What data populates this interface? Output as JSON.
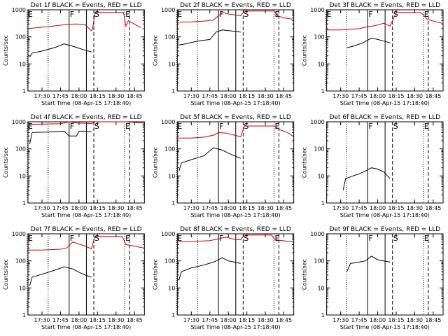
{
  "chart_data": [
    {
      "type": "line",
      "title": "Det 1f BLACK = Events, RED = LLD",
      "xlabel": "Start Time (08-Apr-15 17:18:40)",
      "ylabel": "Counts/sec",
      "yscale": "log",
      "ylim": [
        1,
        1000
      ],
      "xlim": [
        "17:18:40",
        "18:53:00"
      ],
      "xticks": [
        "17:30",
        "17:45",
        "18:00",
        "18:15",
        "18:30",
        "18:45"
      ],
      "yticks": [
        "1",
        "10",
        "100",
        "1000"
      ],
      "markers": [
        {
          "label": "E",
          "time": "17:18",
          "style": "dotted"
        },
        {
          "label": "",
          "time": "17:35",
          "style": "dotted"
        },
        {
          "label": "F",
          "time": "17:52",
          "style": "solid"
        },
        {
          "label": "",
          "time": "18:06",
          "style": "solid"
        },
        {
          "label": "S",
          "time": "18:12",
          "style": "dashed"
        },
        {
          "label": "E",
          "time": "18:37",
          "style": "dotted"
        },
        {
          "label": "",
          "time": "18:41",
          "style": "dashed"
        }
      ],
      "series": [
        {
          "color": "#cc0000",
          "x": [
            "17:18",
            "17:25",
            "17:35",
            "17:45",
            "17:50",
            "17:58",
            "18:05",
            "18:10",
            "18:11",
            "18:13",
            "18:22",
            "18:30",
            "18:36",
            "18:38",
            "18:40",
            "18:42",
            "18:50"
          ],
          "values": [
            200,
            215,
            240,
            270,
            290,
            300,
            280,
            170,
            200,
            800,
            800,
            800,
            800,
            250,
            400,
            350,
            220
          ]
        },
        {
          "color": "#000000",
          "x": [
            "17:20",
            "17:22",
            "17:30",
            "17:40",
            "17:48",
            "17:55",
            "18:00",
            "18:05",
            "18:10"
          ],
          "values": [
            18,
            25,
            30,
            40,
            55,
            45,
            38,
            32,
            28
          ]
        }
      ]
    },
    {
      "type": "line",
      "title": "Det 2f BLACK = Events, RED = LLD",
      "xlabel": "Start Time (08-Apr-15 17:18:40)",
      "ylabel": "Counts/sec",
      "yscale": "log",
      "ylim": [
        1,
        1000
      ],
      "xlim": [
        "17:18:40",
        "18:53:00"
      ],
      "xticks": [
        "17:30",
        "17:45",
        "18:00",
        "18:15",
        "18:30",
        "18:45"
      ],
      "yticks": [
        "1",
        "10",
        "100",
        "1000"
      ],
      "markers": [
        {
          "label": "E",
          "time": "17:18",
          "style": "dotted"
        },
        {
          "label": "",
          "time": "17:35",
          "style": "dotted"
        },
        {
          "label": "F",
          "time": "17:52",
          "style": "solid"
        },
        {
          "label": "",
          "time": "18:06",
          "style": "solid"
        },
        {
          "label": "S",
          "time": "18:12",
          "style": "dashed"
        },
        {
          "label": "E",
          "time": "18:37",
          "style": "dotted"
        },
        {
          "label": "",
          "time": "18:41",
          "style": "dashed"
        }
      ],
      "series": [
        {
          "color": "#cc0000",
          "x": [
            "17:18",
            "17:30",
            "17:40",
            "17:48",
            "17:55",
            "18:00",
            "18:05",
            "18:10",
            "18:13",
            "18:20",
            "18:30",
            "18:37",
            "18:40",
            "18:45",
            "18:52"
          ],
          "values": [
            350,
            360,
            380,
            420,
            800,
            700,
            650,
            600,
            900,
            900,
            900,
            900,
            600,
            500,
            450
          ]
        },
        {
          "color": "#000000",
          "x": [
            "17:20",
            "17:25",
            "17:35",
            "17:45",
            "17:50",
            "17:55",
            "18:00",
            "18:05",
            "18:10"
          ],
          "values": [
            50,
            55,
            70,
            80,
            150,
            180,
            170,
            160,
            150
          ]
        }
      ]
    },
    {
      "type": "line",
      "title": "Det 3f BLACK = Events, RED = LLD",
      "xlabel": "Start Time (08-Apr-15 17:18:40)",
      "ylabel": "Counts/sec",
      "yscale": "log",
      "ylim": [
        1,
        1000
      ],
      "xlim": [
        "17:18:40",
        "18:53:00"
      ],
      "xticks": [
        "17:30",
        "17:45",
        "18:00",
        "18:15",
        "18:30",
        "18:45"
      ],
      "yticks": [
        "1",
        "10",
        "100",
        "1000"
      ],
      "markers": [
        {
          "label": "E",
          "time": "17:18",
          "style": "dotted"
        },
        {
          "label": "",
          "time": "17:35",
          "style": "dotted"
        },
        {
          "label": "F",
          "time": "17:52",
          "style": "solid"
        },
        {
          "label": "",
          "time": "18:06",
          "style": "solid"
        },
        {
          "label": "S",
          "time": "18:12",
          "style": "dashed"
        },
        {
          "label": "E",
          "time": "18:37",
          "style": "dotted"
        },
        {
          "label": "",
          "time": "18:41",
          "style": "dashed"
        }
      ],
      "series": [
        {
          "color": "#cc0000",
          "x": [
            "17:18",
            "17:30",
            "17:45",
            "17:52",
            "17:58",
            "18:05",
            "18:10",
            "18:15",
            "18:25",
            "18:35",
            "18:40",
            "18:45",
            "18:52"
          ],
          "values": [
            180,
            180,
            200,
            240,
            260,
            320,
            250,
            800,
            800,
            800,
            450,
            380,
            320
          ]
        },
        {
          "color": "#000000",
          "x": [
            "17:35",
            "17:40",
            "17:48",
            "17:55",
            "18:00",
            "18:05",
            "18:10"
          ],
          "values": [
            40,
            45,
            60,
            90,
            80,
            70,
            60
          ]
        }
      ]
    },
    {
      "type": "line",
      "title": "Det 4f BLACK = Events, RED = LLD",
      "xlabel": "Start Time (08-Apr-15 17:18:40)",
      "ylabel": "Counts/sec",
      "yscale": "log",
      "ylim": [
        1,
        1000
      ],
      "xlim": [
        "17:18:40",
        "18:53:00"
      ],
      "xticks": [
        "17:30",
        "17:45",
        "18:00",
        "18:15",
        "18:30",
        "18:45"
      ],
      "yticks": [
        "1",
        "10",
        "100",
        "1000"
      ],
      "markers": [
        {
          "label": "E",
          "time": "17:18",
          "style": "dotted"
        },
        {
          "label": "",
          "time": "17:35",
          "style": "dotted"
        },
        {
          "label": "F",
          "time": "17:52",
          "style": "solid"
        },
        {
          "label": "",
          "time": "18:06",
          "style": "solid"
        },
        {
          "label": "S",
          "time": "18:12",
          "style": "dashed"
        },
        {
          "label": "E",
          "time": "18:37",
          "style": "dotted"
        },
        {
          "label": "",
          "time": "18:41",
          "style": "dashed"
        }
      ],
      "series": [
        {
          "color": "#cc0000",
          "x": [
            "17:18",
            "17:30",
            "17:45",
            "17:52",
            "17:58",
            "18:05",
            "18:10",
            "18:13",
            "18:22",
            "18:35",
            "18:38",
            "18:45",
            "18:52"
          ],
          "values": [
            800,
            820,
            850,
            1000,
            900,
            880,
            850,
            1000,
            1000,
            1000,
            1000,
            950,
            900
          ]
        },
        {
          "color": "#000000",
          "x": [
            "17:20",
            "17:22",
            "17:35",
            "17:48",
            "17:52",
            "17:58",
            "18:00",
            "18:05",
            "18:10"
          ],
          "values": [
            150,
            400,
            420,
            450,
            300,
            300,
            450,
            450,
            430
          ]
        }
      ]
    },
    {
      "type": "line",
      "title": "Det 5f BLACK = Events, RED = LLD",
      "xlabel": "Start Time (08-Apr-15 17:18:40)",
      "ylabel": "Counts/sec",
      "yscale": "log",
      "ylim": [
        1,
        1000
      ],
      "xlim": [
        "17:18:40",
        "18:53:00"
      ],
      "xticks": [
        "17:30",
        "17:45",
        "18:00",
        "18:15",
        "18:30",
        "18:45"
      ],
      "yticks": [
        "1",
        "10",
        "100",
        "1000"
      ],
      "markers": [
        {
          "label": "E",
          "time": "17:18",
          "style": "dotted"
        },
        {
          "label": "",
          "time": "17:35",
          "style": "dotted"
        },
        {
          "label": "F",
          "time": "17:52",
          "style": "solid"
        },
        {
          "label": "",
          "time": "18:06",
          "style": "solid"
        },
        {
          "label": "S",
          "time": "18:12",
          "style": "dashed"
        },
        {
          "label": "E",
          "time": "18:37",
          "style": "dotted"
        },
        {
          "label": "",
          "time": "18:41",
          "style": "dashed"
        }
      ],
      "series": [
        {
          "color": "#cc0000",
          "x": [
            "17:18",
            "17:30",
            "17:40",
            "17:48",
            "17:52",
            "17:58",
            "18:05",
            "18:10",
            "18:13",
            "18:22",
            "18:32",
            "18:37",
            "18:42",
            "18:48",
            "18:52"
          ],
          "values": [
            250,
            250,
            270,
            320,
            400,
            380,
            320,
            280,
            700,
            700,
            700,
            700,
            500,
            400,
            300
          ]
        },
        {
          "color": "#000000",
          "x": [
            "17:20",
            "17:22",
            "17:30",
            "17:40",
            "17:48",
            "17:55",
            "18:00",
            "18:05",
            "18:10"
          ],
          "values": [
            15,
            30,
            40,
            55,
            110,
            90,
            70,
            55,
            45
          ]
        }
      ]
    },
    {
      "type": "line",
      "title": "Det 6f BLACK = Events, RED = LLD",
      "xlabel": "Start Time (08-Apr-15 17:18:40)",
      "ylabel": "Counts/sec",
      "yscale": "log",
      "ylim": [
        1,
        1000
      ],
      "xlim": [
        "17:18:40",
        "18:53:00"
      ],
      "xticks": [
        "17:30",
        "17:45",
        "18:00",
        "18:15",
        "18:30",
        "18:45"
      ],
      "yticks": [
        "1",
        "10",
        "100",
        "1000"
      ],
      "markers": [
        {
          "label": "",
          "time": "17:35",
          "style": "dotted"
        },
        {
          "label": "F",
          "time": "17:52",
          "style": "solid"
        },
        {
          "label": "",
          "time": "18:06",
          "style": "solid"
        },
        {
          "label": "S",
          "time": "18:12",
          "style": "dashed"
        },
        {
          "label": "E",
          "time": "18:37",
          "style": "dotted"
        },
        {
          "label": "",
          "time": "18:41",
          "style": "dashed"
        }
      ],
      "series": [
        {
          "color": "#000000",
          "x": [
            "17:32",
            "17:34",
            "17:40",
            "17:45",
            "17:50",
            "17:55",
            "18:00",
            "18:05",
            "18:08",
            "18:10"
          ],
          "values": [
            3,
            8,
            10,
            12,
            15,
            20,
            18,
            14,
            10,
            8
          ]
        }
      ]
    },
    {
      "type": "line",
      "title": "Det 7f BLACK = Events, RED = LLD",
      "xlabel": "Start Time (08-Apr-15 17:18:40)",
      "ylabel": "Counts/sec",
      "yscale": "log",
      "ylim": [
        1,
        1000
      ],
      "xlim": [
        "17:18:40",
        "18:53:00"
      ],
      "xticks": [
        "17:30",
        "17:45",
        "18:00",
        "18:15",
        "18:30",
        "18:45"
      ],
      "yticks": [
        "1",
        "10",
        "100",
        "1000"
      ],
      "markers": [
        {
          "label": "E",
          "time": "17:18",
          "style": "dotted"
        },
        {
          "label": "",
          "time": "17:35",
          "style": "dotted"
        },
        {
          "label": "F",
          "time": "17:52",
          "style": "solid"
        },
        {
          "label": "",
          "time": "18:06",
          "style": "solid"
        },
        {
          "label": "S",
          "time": "18:12",
          "style": "dashed"
        },
        {
          "label": "E",
          "time": "18:37",
          "style": "dotted"
        },
        {
          "label": "",
          "time": "18:41",
          "style": "dashed"
        }
      ],
      "series": [
        {
          "color": "#cc0000",
          "x": [
            "17:18",
            "17:30",
            "17:45",
            "17:50",
            "17:55",
            "18:00",
            "18:05",
            "18:10",
            "18:13",
            "18:22",
            "18:35",
            "18:38",
            "18:45",
            "18:52"
          ],
          "values": [
            250,
            250,
            270,
            300,
            500,
            420,
            350,
            280,
            800,
            800,
            800,
            400,
            350,
            300
          ]
        },
        {
          "color": "#000000",
          "x": [
            "17:20",
            "17:22",
            "17:30",
            "17:40",
            "17:48",
            "17:55",
            "18:00",
            "18:05",
            "18:10"
          ],
          "values": [
            12,
            25,
            32,
            45,
            60,
            50,
            38,
            30,
            25
          ]
        }
      ]
    },
    {
      "type": "line",
      "title": "Det 8f BLACK = Events, RED = LLD",
      "xlabel": "Start Time (08-Apr-15 17:18:40)",
      "ylabel": "Counts/sec",
      "yscale": "log",
      "ylim": [
        1,
        1000
      ],
      "xlim": [
        "17:18:40",
        "18:53:00"
      ],
      "xticks": [
        "17:30",
        "17:45",
        "18:00",
        "18:15",
        "18:30",
        "18:45"
      ],
      "yticks": [
        "1",
        "10",
        "100",
        "1000"
      ],
      "markers": [
        {
          "label": "E",
          "time": "17:18",
          "style": "dotted"
        },
        {
          "label": "",
          "time": "17:35",
          "style": "dotted"
        },
        {
          "label": "F",
          "time": "17:52",
          "style": "solid"
        },
        {
          "label": "",
          "time": "18:06",
          "style": "solid"
        },
        {
          "label": "S",
          "time": "18:12",
          "style": "dashed"
        },
        {
          "label": "E",
          "time": "18:37",
          "style": "dotted"
        },
        {
          "label": "",
          "time": "18:41",
          "style": "dashed"
        }
      ],
      "series": [
        {
          "color": "#cc0000",
          "x": [
            "17:18",
            "17:30",
            "17:45",
            "17:52",
            "17:58",
            "18:05",
            "18:10",
            "18:13",
            "18:22",
            "18:35",
            "18:38",
            "18:45",
            "18:52"
          ],
          "values": [
            500,
            520,
            560,
            650,
            750,
            620,
            600,
            900,
            900,
            900,
            600,
            550,
            500
          ]
        },
        {
          "color": "#000000",
          "x": [
            "17:20",
            "17:22",
            "17:30",
            "17:40",
            "17:48",
            "17:55",
            "18:00",
            "18:05",
            "18:10"
          ],
          "values": [
            20,
            40,
            55,
            70,
            90,
            130,
            100,
            90,
            80
          ]
        }
      ]
    },
    {
      "type": "line",
      "title": "Det 9f BLACK = Events, RED = LLD",
      "xlabel": "Start Time (08-Apr-15 17:18:40)",
      "ylabel": "Counts/sec",
      "yscale": "log",
      "ylim": [
        1,
        1000
      ],
      "xlim": [
        "17:18:40",
        "18:53:00"
      ],
      "xticks": [
        "17:30",
        "17:45",
        "18:00",
        "18:15",
        "18:30",
        "18:45"
      ],
      "yticks": [
        "1",
        "10",
        "100",
        "1000"
      ],
      "markers": [
        {
          "label": "",
          "time": "17:35",
          "style": "dotted"
        },
        {
          "label": "F",
          "time": "17:52",
          "style": "solid"
        },
        {
          "label": "",
          "time": "18:06",
          "style": "solid"
        },
        {
          "label": "S",
          "time": "18:12",
          "style": "dashed"
        },
        {
          "label": "E",
          "time": "18:37",
          "style": "dotted"
        },
        {
          "label": "",
          "time": "18:41",
          "style": "dashed"
        }
      ],
      "series": [
        {
          "color": "#000000",
          "x": [
            "17:35",
            "17:38",
            "17:45",
            "17:50",
            "17:55",
            "18:00",
            "18:05",
            "18:10"
          ],
          "values": [
            40,
            80,
            90,
            100,
            150,
            110,
            100,
            90
          ]
        }
      ]
    }
  ]
}
